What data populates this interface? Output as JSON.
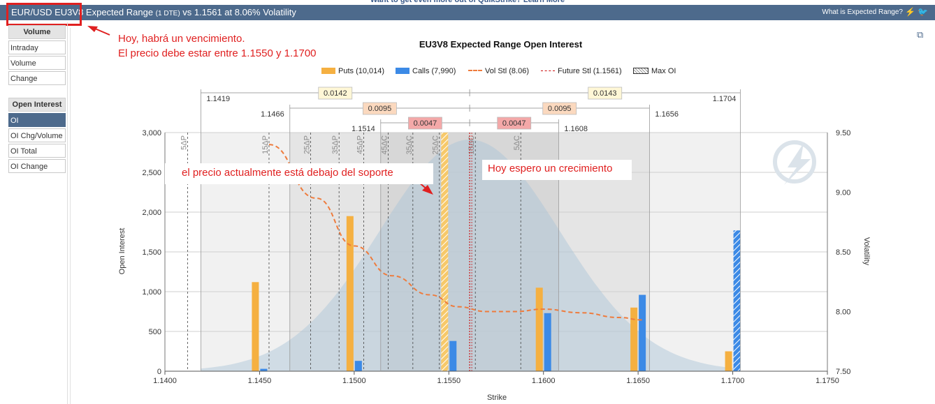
{
  "topline": "Want to get even more out of QuikStrike? Learn More",
  "header": {
    "title_main": "EUR/USD EU3V8 Expected Range",
    "title_dte": "(1 DTE)",
    "title_tail": "vs 1.1561 at 8.06% Volatility",
    "help": "What is Expected Range?",
    "icons": [
      "bolt-icon",
      "twitter-icon"
    ]
  },
  "sidebar": {
    "volume_head": "Volume",
    "volume_items": [
      "Intraday",
      "Volume",
      "Change"
    ],
    "oi_head": "Open Interest",
    "oi_items": [
      "OI",
      "OI Chg/Volume",
      "OI Total",
      "OI Change"
    ],
    "active": "OI"
  },
  "annotations": {
    "top_line1": "Hoy, habrá un vencimiento.",
    "top_line2": "El precio debe estar entre 1.1550  y 1.1700",
    "left_box": "el precio actualmente está debajo del soporte",
    "right_box": "Hoy espero un crecimiento"
  },
  "colors": {
    "puts": "#f5b041",
    "calls": "#3c8ae6",
    "vol": "#ee7b3c",
    "future": "#cc1111",
    "header": "#4d6a8c",
    "annotation": "#e02020"
  },
  "chart_data": {
    "type": "bar",
    "title": "EU3V8 Expected Range Open Interest",
    "xlabel": "Strike",
    "ylabel": "Open Interest",
    "y2label": "Volatility",
    "xlim": [
      1.14,
      1.175
    ],
    "ylim": [
      0,
      3000
    ],
    "y2lim": [
      7.5,
      9.5
    ],
    "x_ticks": [
      "1.1400",
      "1.1450",
      "1.1500",
      "1.1550",
      "1.1600",
      "1.1650",
      "1.1700",
      "1.1750"
    ],
    "y_ticks": [
      "0",
      "500",
      "1,000",
      "1,500",
      "2,000",
      "2,500",
      "3,000"
    ],
    "y2_ticks": [
      "7.50",
      "8.00",
      "8.50",
      "9.00",
      "9.50"
    ],
    "legend": [
      "Puts (10,014)",
      "Calls (7,990)",
      "Vol Stl (8.06)",
      "Future Stl (1.1561)",
      "Max OI"
    ],
    "puts": [
      {
        "strike": 1.145,
        "oi": 1120
      },
      {
        "strike": 1.15,
        "oi": 1950
      },
      {
        "strike": 1.155,
        "oi": 3000,
        "max": true
      },
      {
        "strike": 1.16,
        "oi": 1050
      },
      {
        "strike": 1.165,
        "oi": 800
      },
      {
        "strike": 1.17,
        "oi": 250
      }
    ],
    "calls": [
      {
        "strike": 1.145,
        "oi": 30
      },
      {
        "strike": 1.15,
        "oi": 130
      },
      {
        "strike": 1.155,
        "oi": 380
      },
      {
        "strike": 1.16,
        "oi": 730
      },
      {
        "strike": 1.165,
        "oi": 960
      },
      {
        "strike": 1.17,
        "oi": 1770,
        "max": true
      }
    ],
    "vol_curve": [
      {
        "strike": 1.1455,
        "vol": 9.4
      },
      {
        "strike": 1.148,
        "vol": 8.95
      },
      {
        "strike": 1.15,
        "vol": 8.55
      },
      {
        "strike": 1.152,
        "vol": 8.3
      },
      {
        "strike": 1.154,
        "vol": 8.14
      },
      {
        "strike": 1.1555,
        "vol": 8.04
      },
      {
        "strike": 1.157,
        "vol": 8.0
      },
      {
        "strike": 1.1585,
        "vol": 8.0
      },
      {
        "strike": 1.16,
        "vol": 8.02
      },
      {
        "strike": 1.162,
        "vol": 7.99
      },
      {
        "strike": 1.164,
        "vol": 7.95
      },
      {
        "strike": 1.1652,
        "vol": 7.93
      }
    ],
    "future_stl": 1.1561,
    "delta_lines": [
      {
        "label": "5ΔP",
        "strike": 1.1412
      },
      {
        "label": "15ΔP",
        "strike": 1.1455
      },
      {
        "label": "25ΔP",
        "strike": 1.1477
      },
      {
        "label": "35ΔP",
        "strike": 1.1492
      },
      {
        "label": "45ΔP",
        "strike": 1.1505
      },
      {
        "label": "45ΔC",
        "strike": 1.1518
      },
      {
        "label": "35ΔC",
        "strike": 1.1531
      },
      {
        "label": "25ΔC",
        "strike": 1.1545
      },
      {
        "label": "15ΔC",
        "strike": 1.1564
      },
      {
        "label": "5ΔC",
        "strike": 1.1588
      }
    ],
    "ranges": [
      {
        "low": "1.1419",
        "high": "1.1704",
        "low_val": 1.1419,
        "high_val": 1.1704,
        "left_width": "0.0142",
        "right_width": "0.0143"
      },
      {
        "low": "1.1466",
        "high": "1.1656",
        "low_val": 1.1466,
        "high_val": 1.1656,
        "left_width": "0.0095",
        "right_width": "0.0095"
      },
      {
        "low": "1.1514",
        "high": "1.1608",
        "low_val": 1.1514,
        "high_val": 1.1608,
        "left_width": "0.0047",
        "right_width": "0.0047"
      }
    ]
  }
}
